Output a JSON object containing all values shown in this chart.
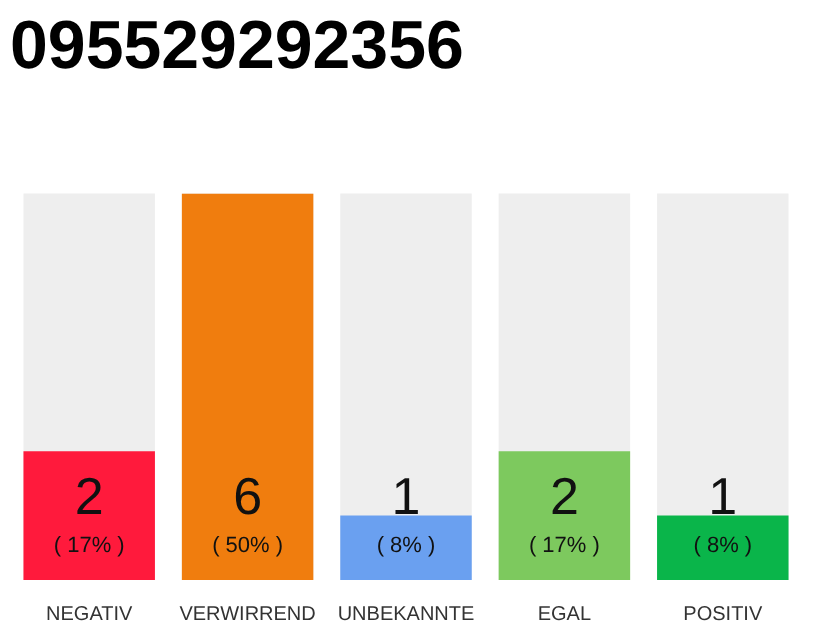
{
  "chart_data": {
    "type": "bar",
    "title": "095529292356",
    "categories": [
      "NEGATIV",
      "VERWIRREND",
      "UNBEKANNTE",
      "EGAL",
      "POSITIV"
    ],
    "values": [
      2,
      6,
      1,
      2,
      1
    ],
    "colors": [
      "#ff1a3c",
      "#f07d0e",
      "#6aa0f0",
      "#7dc95e",
      "#0ab54a"
    ],
    "tick_labels": "x",
    "grid": false,
    "value_labels": [
      "2\n( 17% )",
      "6\n( 50% )",
      "1\n( 8% )",
      "2\n( 17% )",
      "1\n( 8% )"
    ]
  }
}
